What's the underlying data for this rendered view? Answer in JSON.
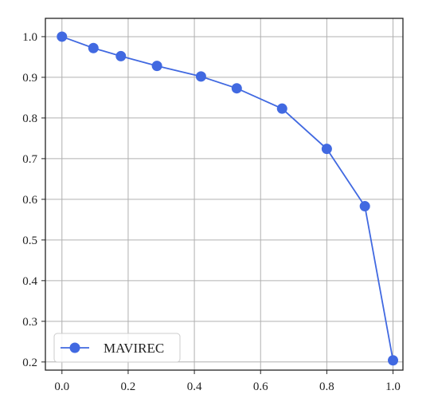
{
  "chart_data": {
    "type": "line",
    "title": "",
    "xlabel": "",
    "ylabel": "",
    "xlim": [
      -0.05,
      1.03
    ],
    "ylim": [
      0.18,
      1.045
    ],
    "xticks": [
      0.0,
      0.2,
      0.4,
      0.6,
      0.8,
      1.0
    ],
    "yticks": [
      0.2,
      0.3,
      0.4,
      0.5,
      0.6,
      0.7,
      0.8,
      0.9,
      1.0
    ],
    "xtick_labels": [
      "0.0",
      "0.2",
      "0.4",
      "0.6",
      "0.8",
      "1.0"
    ],
    "ytick_labels": [
      "0.2",
      "0.3",
      "0.4",
      "0.5",
      "0.6",
      "0.7",
      "0.8",
      "0.9",
      "1.0"
    ],
    "grid": true,
    "legend_position": "lower-left",
    "series": [
      {
        "name": "MAVIREC",
        "color": "#4169e1",
        "marker": "circle",
        "x": [
          0.0,
          0.095,
          0.178,
          0.287,
          0.42,
          0.528,
          0.665,
          0.8,
          0.915,
          1.0
        ],
        "y": [
          1.0,
          0.972,
          0.952,
          0.928,
          0.902,
          0.873,
          0.823,
          0.724,
          0.583,
          0.204
        ]
      }
    ]
  }
}
